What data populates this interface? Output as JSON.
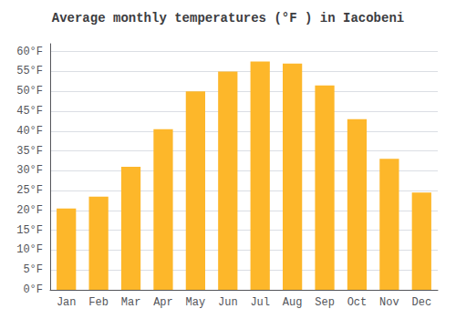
{
  "chart_data": {
    "type": "bar",
    "title": "Average monthly temperatures (°F ) in Iacobeni",
    "categories": [
      "Jan",
      "Feb",
      "Mar",
      "Apr",
      "May",
      "Jun",
      "Jul",
      "Aug",
      "Sep",
      "Oct",
      "Nov",
      "Dec"
    ],
    "values": [
      20.5,
      23.5,
      31.0,
      40.5,
      50.0,
      55.0,
      57.5,
      57.0,
      51.5,
      43.0,
      33.0,
      24.5
    ],
    "color": "#FDB72A",
    "ylim": [
      0,
      62
    ],
    "yticks": [
      {
        "value": 0,
        "label": "0°F"
      },
      {
        "value": 5,
        "label": "5°F"
      },
      {
        "value": 10,
        "label": "10°F"
      },
      {
        "value": 15,
        "label": "15°F"
      },
      {
        "value": 20,
        "label": "20°F"
      },
      {
        "value": 25,
        "label": "25°F"
      },
      {
        "value": 30,
        "label": "30°F"
      },
      {
        "value": 35,
        "label": "35°F"
      },
      {
        "value": 40,
        "label": "40°F"
      },
      {
        "value": 45,
        "label": "45°F"
      },
      {
        "value": 50,
        "label": "50°F"
      },
      {
        "value": 55,
        "label": "55°F"
      },
      {
        "value": 60,
        "label": "60°F"
      }
    ],
    "grid": true
  }
}
